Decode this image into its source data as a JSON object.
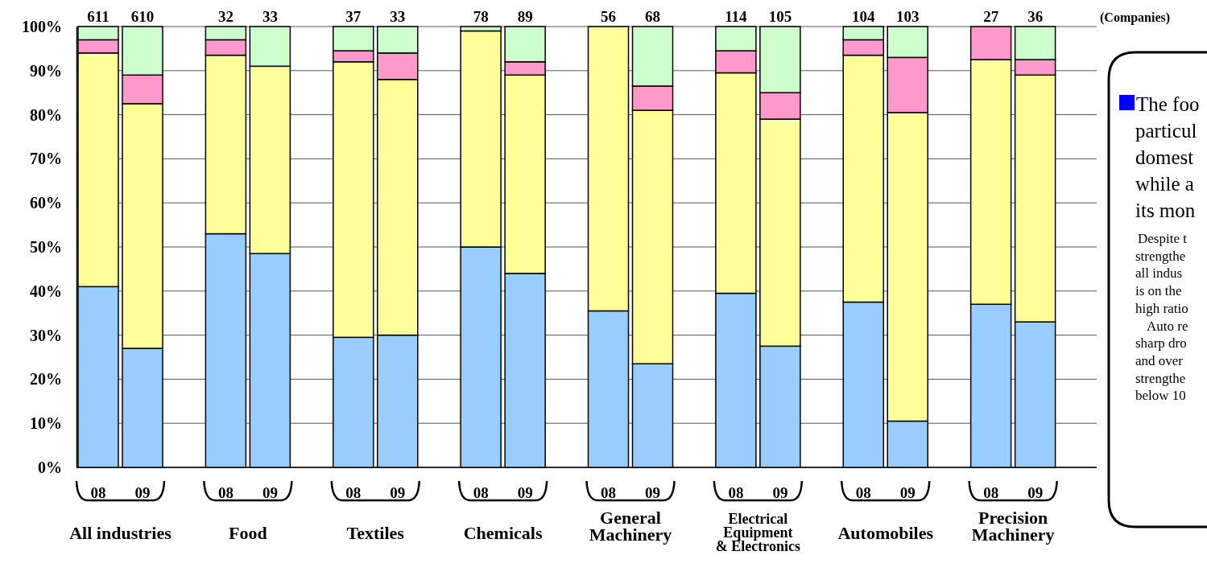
{
  "chart_data": {
    "type": "bar",
    "stacked": true,
    "categories": [
      "08",
      "09",
      "08",
      "09",
      "08",
      "09",
      "08",
      "09",
      "08",
      "09",
      "08",
      "09",
      "08",
      "09",
      "08",
      "09"
    ],
    "series": [
      {
        "color": "#99ccff",
        "values": [
          41,
          27,
          53,
          48.5,
          29.5,
          30,
          50,
          44,
          35.5,
          23.5,
          39.5,
          27.5,
          37.5,
          10.5,
          37,
          33
        ]
      },
      {
        "color": "#ffff99",
        "values": [
          53,
          55.5,
          40.5,
          42.5,
          62.5,
          58,
          49,
          45,
          64.5,
          57.5,
          50,
          51.5,
          56,
          70,
          55.5,
          56
        ]
      },
      {
        "color": "#ff99cc",
        "values": [
          3,
          6.5,
          3.5,
          0,
          2.5,
          6,
          0,
          3,
          0,
          5.5,
          5,
          6,
          3.5,
          12.5,
          7.5,
          3.5
        ]
      },
      {
        "color": "#ccffcc",
        "values": [
          3,
          11,
          3,
          9,
          5.5,
          6,
          1,
          8,
          0,
          13.5,
          5.5,
          15,
          3,
          7,
          0,
          7.5
        ]
      }
    ],
    "ylim": [
      0,
      100
    ],
    "yticks": [
      {
        "value": 0,
        "label": "0%"
      },
      {
        "value": 10,
        "label": "10%"
      },
      {
        "value": 20,
        "label": "20%"
      },
      {
        "value": 30,
        "label": "30%"
      },
      {
        "value": 40,
        "label": "40%"
      },
      {
        "value": 50,
        "label": "50%"
      },
      {
        "value": 60,
        "label": "60%"
      },
      {
        "value": 70,
        "label": "70%"
      },
      {
        "value": 80,
        "label": "80%"
      },
      {
        "value": 90,
        "label": "90%"
      },
      {
        "value": 100,
        "label": "100%"
      }
    ],
    "grid": "y",
    "annotations": [
      "611",
      "610",
      "32",
      "33",
      "37",
      "33",
      "78",
      "89",
      "56",
      "68",
      "114",
      "105",
      "104",
      "103",
      "27",
      "36",
      "All industries",
      "Food",
      "Textiles",
      "Chemicals",
      "General\nMachinery",
      "Electrical\nEquipment\n& Electronics",
      "Automobiles",
      "Precision\nMachinery",
      "(Companies)",
      "The foo",
      "particul",
      "domest",
      "while a",
      "its mon",
      "Despite t",
      "strengthe",
      "all indus",
      "is on the",
      "high ratio",
      "Auto re",
      "sharp dro",
      "and over",
      "strengthe",
      "below 10"
    ]
  }
}
